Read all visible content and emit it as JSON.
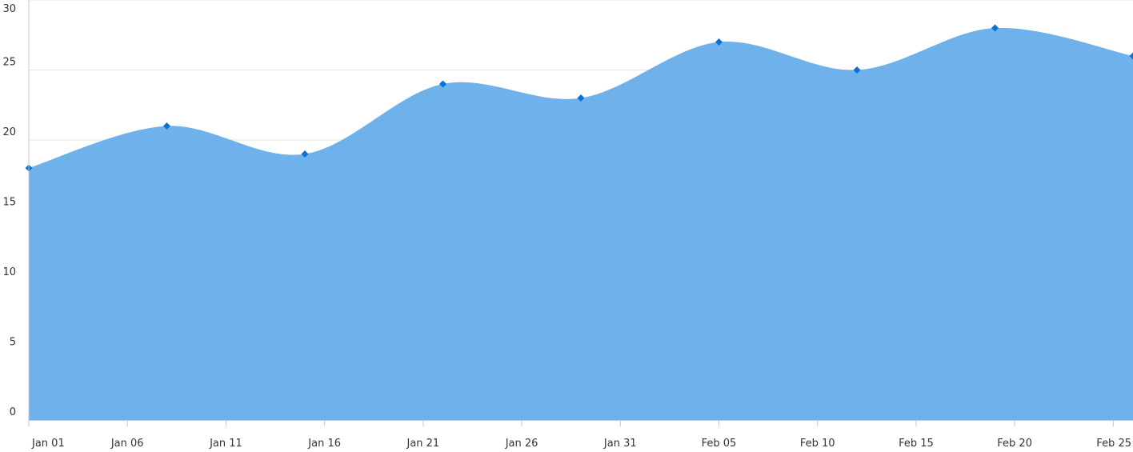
{
  "chart_data": {
    "type": "area",
    "x_type": "date",
    "x": [
      "Jan 01",
      "Jan 08",
      "Jan 15",
      "Jan 22",
      "Jan 29",
      "Feb 05",
      "Feb 12",
      "Feb 19",
      "Feb 26"
    ],
    "series": [
      {
        "values": [
          18,
          21,
          19,
          24,
          23,
          27,
          25,
          28,
          26
        ]
      }
    ],
    "xticks": [
      "Jan 01",
      "Jan 06",
      "Jan 11",
      "Jan 16",
      "Jan 21",
      "Jan 26",
      "Jan 31",
      "Feb 05",
      "Feb 10",
      "Feb 15",
      "Feb 20",
      "Feb 25"
    ],
    "yticks": [
      "0",
      "5",
      "10",
      "15",
      "20",
      "25",
      "30"
    ],
    "ylim": [
      0,
      30
    ],
    "xlim": [
      "Jan 01",
      "Feb 26"
    ],
    "marker": "diamond",
    "curve": "smooth",
    "grid": true,
    "legend": "none",
    "colors": {
      "fill": "#6aaeea",
      "marker": "#0a72d6",
      "grid": "#e4e4e4",
      "axis": "#c8c8c8"
    },
    "title": "",
    "xlabel": "",
    "ylabel": ""
  }
}
